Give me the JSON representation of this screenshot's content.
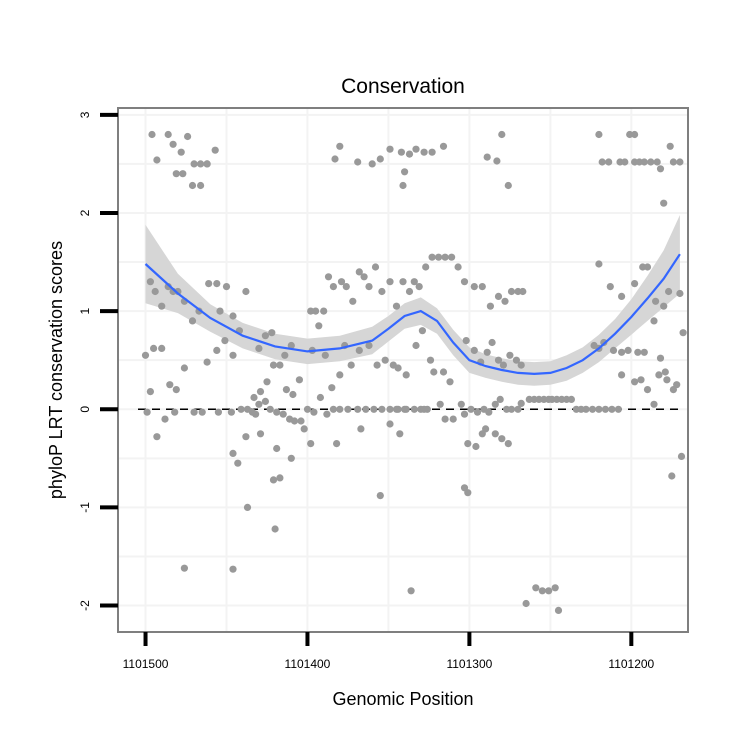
{
  "chart_data": {
    "type": "scatter",
    "title": "Conservation",
    "xlabel": "Genomic Position",
    "ylabel": "phyloP LRT conservation scores",
    "xlim": [
      1101165,
      1101517
    ],
    "x_reversed": true,
    "ylim": [
      -2.27,
      3.07
    ],
    "xticks": [
      1101500,
      1101400,
      1101300,
      1101200
    ],
    "xtick_labels": [
      "1101500",
      "1101400",
      "1101300",
      "1101200"
    ],
    "yticks": [
      -2,
      -1,
      0,
      1,
      2,
      3
    ],
    "ytick_labels": [
      "-2",
      "-1",
      "0",
      "1",
      "2",
      "3"
    ],
    "grid": true,
    "reference_line": {
      "y": 0,
      "style": "dashed",
      "color": "#000000"
    },
    "colors": {
      "points": "#999999",
      "smooth_line": "#3366ff",
      "confidence_band": "#d6d6d6",
      "grid": "#f3f3f3",
      "frame": "#7f7f7f"
    },
    "points": [
      [
        1101496,
        2.8
      ],
      [
        1101493,
        2.54
      ],
      [
        1101486,
        2.8
      ],
      [
        1101483,
        2.7
      ],
      [
        1101478,
        2.62
      ],
      [
        1101474,
        2.78
      ],
      [
        1101470,
        2.5
      ],
      [
        1101466,
        2.5
      ],
      [
        1101462,
        2.5
      ],
      [
        1101457,
        2.64
      ],
      [
        1101481,
        2.4
      ],
      [
        1101477,
        2.4
      ],
      [
        1101471,
        2.28
      ],
      [
        1101466,
        2.28
      ],
      [
        1101462,
        2.5
      ],
      [
        1101497,
        1.3
      ],
      [
        1101494,
        1.2
      ],
      [
        1101490,
        1.05
      ],
      [
        1101486,
        1.25
      ],
      [
        1101483,
        1.2
      ],
      [
        1101480,
        1.2
      ],
      [
        1101476,
        1.1
      ],
      [
        1101471,
        0.9
      ],
      [
        1101467,
        1.0
      ],
      [
        1101461,
        1.28
      ],
      [
        1101456,
        1.28
      ],
      [
        1101450,
        1.25
      ],
      [
        1101454,
        1.0
      ],
      [
        1101446,
        0.95
      ],
      [
        1101442,
        0.8
      ],
      [
        1101438,
        1.2
      ],
      [
        1101500,
        0.55
      ],
      [
        1101495,
        0.62
      ],
      [
        1101490,
        0.62
      ],
      [
        1101497,
        0.18
      ],
      [
        1101485,
        0.25
      ],
      [
        1101481,
        0.2
      ],
      [
        1101476,
        0.42
      ],
      [
        1101462,
        0.48
      ],
      [
        1101456,
        0.6
      ],
      [
        1101451,
        0.7
      ],
      [
        1101446,
        0.55
      ],
      [
        1101499,
        -0.03
      ],
      [
        1101493,
        -0.28
      ],
      [
        1101488,
        -0.1
      ],
      [
        1101482,
        -0.03
      ],
      [
        1101470,
        -0.03
      ],
      [
        1101465,
        -0.03
      ],
      [
        1101455,
        -0.03
      ],
      [
        1101447,
        -0.03
      ],
      [
        1101441,
        0.0
      ],
      [
        1101437,
        0.0
      ],
      [
        1101434,
        -0.03
      ],
      [
        1101430,
        0.05
      ],
      [
        1101426,
        0.08
      ],
      [
        1101423,
        0.0
      ],
      [
        1101419,
        -0.03
      ],
      [
        1101415,
        -0.05
      ],
      [
        1101411,
        -0.1
      ],
      [
        1101408,
        -0.12
      ],
      [
        1101404,
        -0.12
      ],
      [
        1101446,
        -0.45
      ],
      [
        1101443,
        -0.55
      ],
      [
        1101438,
        -0.28
      ],
      [
        1101432,
        -0.05
      ],
      [
        1101429,
        -0.25
      ],
      [
        1101433,
        0.12
      ],
      [
        1101429,
        0.18
      ],
      [
        1101425,
        0.28
      ],
      [
        1101421,
        0.45
      ],
      [
        1101417,
        0.45
      ],
      [
        1101413,
        0.2
      ],
      [
        1101409,
        0.15
      ],
      [
        1101405,
        0.3
      ],
      [
        1101426,
        0.75
      ],
      [
        1101430,
        0.62
      ],
      [
        1101422,
        0.78
      ],
      [
        1101414,
        0.55
      ],
      [
        1101410,
        0.65
      ],
      [
        1101419,
        -0.4
      ],
      [
        1101417,
        -0.7
      ],
      [
        1101421,
        -0.72
      ],
      [
        1101410,
        -0.5
      ],
      [
        1101402,
        -0.2
      ],
      [
        1101437,
        -1.0
      ],
      [
        1101420,
        -1.22
      ],
      [
        1101476,
        -1.62
      ],
      [
        1101446,
        -1.63
      ],
      [
        1101400,
        0.0
      ],
      [
        1101396,
        -0.03
      ],
      [
        1101392,
        0.12
      ],
      [
        1101388,
        -0.05
      ],
      [
        1101384,
        0.0
      ],
      [
        1101380,
        0.0
      ],
      [
        1101375,
        0.0
      ],
      [
        1101369,
        0.0
      ],
      [
        1101364,
        0.0
      ],
      [
        1101359,
        0.0
      ],
      [
        1101354,
        0.0
      ],
      [
        1101349,
        0.0
      ],
      [
        1101344,
        0.0
      ],
      [
        1101339,
        0.0
      ],
      [
        1101334,
        0.0
      ],
      [
        1101330,
        0.0
      ],
      [
        1101326,
        0.0
      ],
      [
        1101398,
        -0.35
      ],
      [
        1101382,
        -0.35
      ],
      [
        1101367,
        -0.2
      ],
      [
        1101349,
        -0.15
      ],
      [
        1101343,
        -0.25
      ],
      [
        1101397,
        0.6
      ],
      [
        1101393,
        0.85
      ],
      [
        1101389,
        0.55
      ],
      [
        1101385,
        0.22
      ],
      [
        1101380,
        0.35
      ],
      [
        1101377,
        0.65
      ],
      [
        1101373,
        0.45
      ],
      [
        1101368,
        0.6
      ],
      [
        1101362,
        0.65
      ],
      [
        1101357,
        0.45
      ],
      [
        1101352,
        0.5
      ],
      [
        1101347,
        0.45
      ],
      [
        1101344,
        0.42
      ],
      [
        1101339,
        0.35
      ],
      [
        1101333,
        0.65
      ],
      [
        1101329,
        0.8
      ],
      [
        1101324,
        0.5
      ],
      [
        1101398,
        1.0
      ],
      [
        1101395,
        1.0
      ],
      [
        1101390,
        1.0
      ],
      [
        1101387,
        1.35
      ],
      [
        1101384,
        1.25
      ],
      [
        1101379,
        1.3
      ],
      [
        1101376,
        1.25
      ],
      [
        1101372,
        1.1
      ],
      [
        1101368,
        1.4
      ],
      [
        1101365,
        1.35
      ],
      [
        1101362,
        1.25
      ],
      [
        1101358,
        1.45
      ],
      [
        1101354,
        1.2
      ],
      [
        1101349,
        1.3
      ],
      [
        1101345,
        1.05
      ],
      [
        1101341,
        1.3
      ],
      [
        1101337,
        1.2
      ],
      [
        1101334,
        1.3
      ],
      [
        1101331,
        1.25
      ],
      [
        1101327,
        1.45
      ],
      [
        1101323,
        1.55
      ],
      [
        1101319,
        1.55
      ],
      [
        1101315,
        1.55
      ],
      [
        1101311,
        1.55
      ],
      [
        1101307,
        1.45
      ],
      [
        1101303,
        1.3
      ],
      [
        1101355,
        -0.88
      ],
      [
        1101336,
        -1.85
      ],
      [
        1101383,
        2.55
      ],
      [
        1101380,
        2.68
      ],
      [
        1101369,
        2.52
      ],
      [
        1101360,
        2.5
      ],
      [
        1101355,
        2.55
      ],
      [
        1101349,
        2.65
      ],
      [
        1101342,
        2.62
      ],
      [
        1101337,
        2.6
      ],
      [
        1101333,
        2.65
      ],
      [
        1101328,
        2.62
      ],
      [
        1101323,
        2.62
      ],
      [
        1101316,
        2.68
      ],
      [
        1101340,
        2.42
      ],
      [
        1101341,
        2.28
      ],
      [
        1101322,
        0.38
      ],
      [
        1101316,
        0.38
      ],
      [
        1101312,
        0.28
      ],
      [
        1101318,
        0.05
      ],
      [
        1101315,
        -0.1
      ],
      [
        1101310,
        -0.1
      ],
      [
        1101305,
        0.05
      ],
      [
        1101303,
        -0.05
      ],
      [
        1101299,
        0.0
      ],
      [
        1101295,
        -0.03
      ],
      [
        1101291,
        0.0
      ],
      [
        1101288,
        -0.03
      ],
      [
        1101284,
        0.05
      ],
      [
        1101281,
        0.1
      ],
      [
        1101277,
        0.0
      ],
      [
        1101274,
        0.0
      ],
      [
        1101270,
        0.0
      ],
      [
        1101268,
        0.06
      ],
      [
        1101302,
        0.7
      ],
      [
        1101297,
        0.6
      ],
      [
        1101293,
        0.48
      ],
      [
        1101289,
        0.58
      ],
      [
        1101286,
        0.68
      ],
      [
        1101282,
        0.5
      ],
      [
        1101279,
        0.45
      ],
      [
        1101275,
        0.55
      ],
      [
        1101271,
        0.5
      ],
      [
        1101268,
        0.45
      ],
      [
        1101301,
        -0.35
      ],
      [
        1101296,
        -0.38
      ],
      [
        1101290,
        -0.2
      ],
      [
        1101284,
        -0.25
      ],
      [
        1101280,
        -0.3
      ],
      [
        1101292,
        -0.25
      ],
      [
        1101276,
        -0.35
      ],
      [
        1101303,
        -0.8
      ],
      [
        1101301,
        -0.85
      ],
      [
        1101297,
        1.25
      ],
      [
        1101292,
        1.25
      ],
      [
        1101287,
        1.05
      ],
      [
        1101282,
        1.15
      ],
      [
        1101278,
        1.1
      ],
      [
        1101274,
        1.2
      ],
      [
        1101270,
        1.2
      ],
      [
        1101267,
        1.2
      ],
      [
        1101289,
        2.57
      ],
      [
        1101283,
        2.53
      ],
      [
        1101280,
        2.8
      ],
      [
        1101276,
        2.28
      ],
      [
        1101263,
        0.1
      ],
      [
        1101260,
        0.1
      ],
      [
        1101257,
        0.1
      ],
      [
        1101254,
        0.1
      ],
      [
        1101251,
        0.1
      ],
      [
        1101249,
        0.1
      ],
      [
        1101246,
        0.1
      ],
      [
        1101243,
        0.1
      ],
      [
        1101240,
        0.1
      ],
      [
        1101237,
        0.1
      ],
      [
        1101234,
        0.0
      ],
      [
        1101231,
        0.0
      ],
      [
        1101228,
        0.0
      ],
      [
        1101224,
        0.0
      ],
      [
        1101220,
        0.0
      ],
      [
        1101216,
        0.0
      ],
      [
        1101212,
        0.0
      ],
      [
        1101208,
        0.0
      ],
      [
        1101265,
        -1.98
      ],
      [
        1101259,
        -1.82
      ],
      [
        1101255,
        -1.85
      ],
      [
        1101251,
        -1.85
      ],
      [
        1101247,
        -1.82
      ],
      [
        1101245,
        -2.05
      ],
      [
        1101223,
        0.65
      ],
      [
        1101220,
        0.62
      ],
      [
        1101217,
        0.68
      ],
      [
        1101211,
        0.6
      ],
      [
        1101206,
        0.35
      ],
      [
        1101202,
        0.6
      ],
      [
        1101198,
        0.28
      ],
      [
        1101194,
        0.3
      ],
      [
        1101190,
        0.2
      ],
      [
        1101186,
        0.05
      ],
      [
        1101183,
        0.35
      ],
      [
        1101178,
        0.3
      ],
      [
        1101174,
        0.2
      ],
      [
        1101172,
        0.25
      ],
      [
        1101168,
        0.78
      ],
      [
        1101220,
        1.48
      ],
      [
        1101213,
        1.25
      ],
      [
        1101206,
        1.15
      ],
      [
        1101198,
        1.28
      ],
      [
        1101193,
        1.45
      ],
      [
        1101190,
        1.45
      ],
      [
        1101185,
        1.1
      ],
      [
        1101180,
        1.05
      ],
      [
        1101177,
        1.2
      ],
      [
        1101170,
        1.18
      ],
      [
        1101220,
        2.8
      ],
      [
        1101218,
        2.52
      ],
      [
        1101214,
        2.52
      ],
      [
        1101207,
        2.52
      ],
      [
        1101204,
        2.52
      ],
      [
        1101201,
        2.8
      ],
      [
        1101198,
        2.8
      ],
      [
        1101198,
        2.52
      ],
      [
        1101195,
        2.52
      ],
      [
        1101192,
        2.52
      ],
      [
        1101188,
        2.52
      ],
      [
        1101184,
        2.52
      ],
      [
        1101182,
        2.45
      ],
      [
        1101180,
        2.1
      ],
      [
        1101176,
        2.68
      ],
      [
        1101174,
        2.52
      ],
      [
        1101170,
        2.52
      ],
      [
        1101206,
        0.58
      ],
      [
        1101196,
        0.58
      ],
      [
        1101192,
        0.58
      ],
      [
        1101186,
        0.9
      ],
      [
        1101182,
        0.52
      ],
      [
        1101179,
        0.38
      ],
      [
        1101175,
        -0.68
      ],
      [
        1101169,
        -0.48
      ],
      [
        1101345,
        0.0
      ],
      [
        1101340,
        0.0
      ],
      [
        1101328,
        0.0
      ]
    ],
    "smooth_line": [
      [
        1101500,
        1.48
      ],
      [
        1101480,
        1.18
      ],
      [
        1101460,
        0.93
      ],
      [
        1101440,
        0.75
      ],
      [
        1101420,
        0.64
      ],
      [
        1101400,
        0.59
      ],
      [
        1101380,
        0.62
      ],
      [
        1101360,
        0.7
      ],
      [
        1101350,
        0.82
      ],
      [
        1101340,
        0.95
      ],
      [
        1101330,
        1.0
      ],
      [
        1101320,
        0.9
      ],
      [
        1101310,
        0.68
      ],
      [
        1101300,
        0.5
      ],
      [
        1101290,
        0.44
      ],
      [
        1101280,
        0.4
      ],
      [
        1101270,
        0.37
      ],
      [
        1101260,
        0.36
      ],
      [
        1101250,
        0.37
      ],
      [
        1101240,
        0.42
      ],
      [
        1101230,
        0.5
      ],
      [
        1101220,
        0.62
      ],
      [
        1101210,
        0.77
      ],
      [
        1101200,
        0.94
      ],
      [
        1101190,
        1.13
      ],
      [
        1101180,
        1.33
      ],
      [
        1101170,
        1.58
      ]
    ],
    "confidence_band_upper": [
      [
        1101500,
        1.88
      ],
      [
        1101480,
        1.38
      ],
      [
        1101460,
        1.07
      ],
      [
        1101440,
        0.88
      ],
      [
        1101420,
        0.77
      ],
      [
        1101400,
        0.72
      ],
      [
        1101380,
        0.75
      ],
      [
        1101360,
        0.84
      ],
      [
        1101350,
        0.95
      ],
      [
        1101340,
        1.08
      ],
      [
        1101330,
        1.14
      ],
      [
        1101320,
        1.03
      ],
      [
        1101310,
        0.81
      ],
      [
        1101300,
        0.63
      ],
      [
        1101290,
        0.56
      ],
      [
        1101280,
        0.52
      ],
      [
        1101270,
        0.49
      ],
      [
        1101260,
        0.48
      ],
      [
        1101250,
        0.49
      ],
      [
        1101240,
        0.55
      ],
      [
        1101230,
        0.63
      ],
      [
        1101220,
        0.76
      ],
      [
        1101210,
        0.92
      ],
      [
        1101200,
        1.12
      ],
      [
        1101190,
        1.36
      ],
      [
        1101180,
        1.62
      ],
      [
        1101170,
        1.98
      ]
    ],
    "confidence_band_lower": [
      [
        1101500,
        1.08
      ],
      [
        1101480,
        0.98
      ],
      [
        1101460,
        0.79
      ],
      [
        1101440,
        0.62
      ],
      [
        1101420,
        0.51
      ],
      [
        1101400,
        0.46
      ],
      [
        1101380,
        0.49
      ],
      [
        1101360,
        0.56
      ],
      [
        1101350,
        0.69
      ],
      [
        1101340,
        0.82
      ],
      [
        1101330,
        0.86
      ],
      [
        1101320,
        0.77
      ],
      [
        1101310,
        0.55
      ],
      [
        1101300,
        0.37
      ],
      [
        1101290,
        0.32
      ],
      [
        1101280,
        0.28
      ],
      [
        1101270,
        0.25
      ],
      [
        1101260,
        0.24
      ],
      [
        1101250,
        0.25
      ],
      [
        1101240,
        0.29
      ],
      [
        1101230,
        0.37
      ],
      [
        1101220,
        0.48
      ],
      [
        1101210,
        0.62
      ],
      [
        1101200,
        0.76
      ],
      [
        1101190,
        0.9
      ],
      [
        1101180,
        1.04
      ],
      [
        1101170,
        1.18
      ]
    ]
  }
}
